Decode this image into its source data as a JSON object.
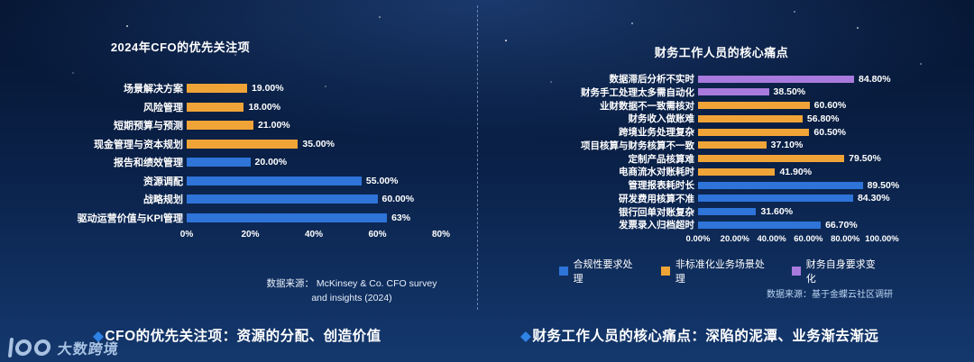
{
  "palette": {
    "blue": "#2e74d9",
    "orange": "#f0a437",
    "purple": "#a97add",
    "background_top": "#051430",
    "background_bottom": "#14386e",
    "caption_diamond": "#2f82e6"
  },
  "chart_data": [
    {
      "type": "bar",
      "orientation": "horizontal",
      "title": "2024年CFO的优先关注项",
      "categories": [
        "场景解决方案",
        "风险管理",
        "短期预算与预测",
        "现金管理与资本规划",
        "报告和绩效管理",
        "资源调配",
        "战略规划",
        "驱动运营价值与KPI管理"
      ],
      "values": [
        19,
        18,
        21,
        35,
        20,
        55,
        60,
        63
      ],
      "value_labels": [
        "19.00%",
        "18.00%",
        "21.00%",
        "35.00%",
        "20.00%",
        "55.00%",
        "60.00%",
        "63%"
      ],
      "colors": [
        "orange",
        "orange",
        "orange",
        "orange",
        "blue",
        "blue",
        "blue",
        "blue"
      ],
      "xlim": [
        0,
        80
      ],
      "x_ticks": [
        "0%",
        "20%",
        "40%",
        "60%",
        "80%"
      ],
      "grid": false,
      "legend": null
    },
    {
      "type": "bar",
      "orientation": "horizontal",
      "title": "财务工作人员的核心痛点",
      "categories": [
        "数据滞后分析不实时",
        "财务手工处理太多需自动化",
        "业财数据不一致需核对",
        "财务收入做账难",
        "跨境业务处理复杂",
        "项目核算与财务核算不一致",
        "定制产品核算难",
        "电商流水对账耗时",
        "管理报表耗时长",
        "研发费用核算不准",
        "银行回单对账复杂",
        "发票录入归档超时"
      ],
      "values": [
        84.8,
        38.5,
        60.6,
        56.8,
        60.5,
        37.1,
        79.5,
        41.9,
        89.5,
        84.3,
        31.6,
        66.7
      ],
      "value_labels": [
        "84.80%",
        "38.50%",
        "60.60%",
        "56.80%",
        "60.50%",
        "37.10%",
        "79.50%",
        "41.90%",
        "89.50%",
        "84.30%",
        "31.60%",
        "66.70%"
      ],
      "colors": [
        "purple",
        "purple",
        "orange",
        "orange",
        "orange",
        "orange",
        "orange",
        "orange",
        "blue",
        "blue",
        "blue",
        "blue"
      ],
      "xlim": [
        0,
        100
      ],
      "x_ticks": [
        "0.00%",
        "20.00%",
        "40.00%",
        "60.00%",
        "80.00%",
        "100.00%"
      ],
      "grid": false,
      "legend": [
        {
          "label": "合规性要求处理",
          "color": "blue"
        },
        {
          "label": "非标准化业务场景处理",
          "color": "orange"
        },
        {
          "label": "财务自身要求变化",
          "color": "purple"
        }
      ]
    }
  ],
  "left_source": {
    "line1": "数据来源： McKinsey & Co. CFO survey",
    "line2": "and insights (2024)"
  },
  "right_source": "数据来源：基于金蝶云社区调研",
  "captions": {
    "left": {
      "diamond": "◆",
      "text": "CFO的优先关注项：资源的分配、创造价值"
    },
    "right": {
      "diamond": "◆",
      "text": "财务工作人员的核心痛点：深陷的泥潭、业务渐去渐远"
    }
  },
  "logo": {
    "text": "大数跨境"
  }
}
